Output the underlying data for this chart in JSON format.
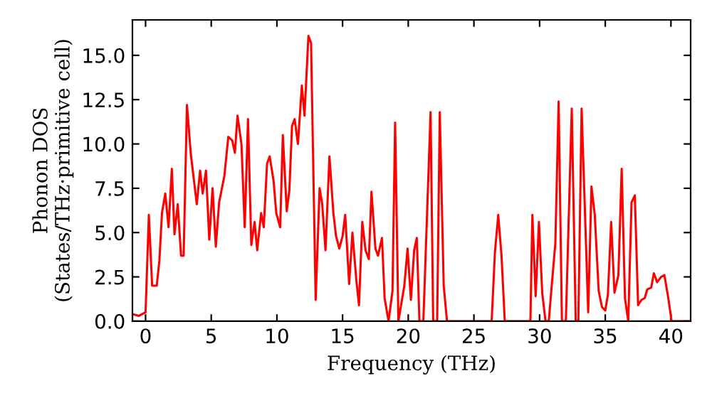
{
  "chart_data": {
    "type": "line",
    "xlabel": "Frequency (THz)",
    "ylabel": "Phonon DOS\n(States/THz·primitive cell)",
    "xlim": [
      -1,
      41.5
    ],
    "ylim": [
      0,
      17
    ],
    "xticks": [
      0,
      5,
      10,
      15,
      20,
      25,
      30,
      35,
      40
    ],
    "yticks": [
      {
        "value": 0,
        "label": "0.0"
      },
      {
        "value": 2.5,
        "label": "2.5"
      },
      {
        "value": 5,
        "label": "5.0"
      },
      {
        "value": 7.5,
        "label": "7.5"
      },
      {
        "value": 10,
        "label": "10.0"
      },
      {
        "value": 12.5,
        "label": "12.5"
      },
      {
        "value": 15,
        "label": "15.0"
      }
    ],
    "grid": false,
    "marker": "none",
    "line_style": "solid",
    "series": [
      {
        "color": "#ff0000",
        "x": [
          -1,
          -0.5,
          0,
          0.25,
          0.5,
          0.85,
          1.05,
          1.25,
          1.5,
          1.75,
          2.0,
          2.2,
          2.45,
          2.7,
          2.9,
          3.15,
          3.45,
          3.9,
          4.15,
          4.35,
          4.6,
          4.85,
          5.1,
          5.35,
          5.6,
          6.0,
          6.3,
          6.6,
          6.8,
          7.0,
          7.3,
          7.55,
          7.8,
          8.05,
          8.3,
          8.5,
          8.8,
          9.0,
          9.25,
          9.45,
          9.75,
          9.95,
          10.25,
          10.45,
          10.75,
          10.95,
          11.15,
          11.35,
          11.6,
          11.9,
          12.1,
          12.4,
          12.6,
          12.95,
          13.25,
          13.45,
          13.7,
          14.0,
          14.3,
          14.5,
          14.75,
          15.0,
          15.2,
          15.5,
          15.75,
          16.05,
          16.25,
          16.5,
          16.75,
          17.0,
          17.2,
          17.5,
          17.7,
          18.0,
          18.2,
          18.5,
          18.8,
          19.0,
          19.25,
          19.7,
          19.95,
          20.2,
          20.45,
          20.65,
          20.85,
          21.15,
          21.7,
          21.9,
          22.2,
          22.4,
          22.7,
          22.95,
          26.35,
          26.6,
          26.85,
          27.1,
          27.35,
          29.3,
          29.45,
          29.7,
          29.95,
          30.2,
          30.45,
          30.7,
          30.9,
          31.2,
          31.45,
          31.7,
          32.0,
          32.45,
          32.75,
          32.95,
          33.2,
          33.7,
          33.95,
          34.2,
          34.5,
          34.75,
          35.0,
          35.2,
          35.45,
          35.7,
          36.0,
          36.25,
          36.5,
          36.75,
          37.0,
          37.25,
          37.5,
          37.75,
          38.0,
          38.2,
          38.5,
          38.7,
          38.95,
          39.25,
          39.5,
          39.8,
          40.05,
          41.5
        ],
        "values": [
          0.4,
          0.3,
          0.5,
          6.0,
          2.0,
          2.0,
          3.4,
          6.1,
          7.2,
          5.3,
          8.6,
          4.9,
          6.6,
          3.7,
          3.7,
          12.2,
          9.4,
          6.6,
          8.5,
          7.2,
          8.5,
          4.6,
          7.5,
          4.2,
          6.7,
          8.2,
          10.4,
          10.2,
          9.5,
          11.6,
          10.0,
          5.3,
          11.4,
          4.3,
          5.6,
          4.0,
          6.1,
          5.3,
          8.9,
          9.3,
          7.9,
          6.1,
          5.3,
          10.5,
          6.2,
          7.4,
          11.0,
          11.4,
          10.0,
          13.3,
          11.6,
          16.1,
          15.7,
          1.2,
          7.5,
          6.6,
          4.0,
          9.3,
          6.1,
          4.8,
          4.1,
          4.8,
          6.0,
          2.1,
          5.0,
          2.3,
          0.9,
          5.6,
          4.0,
          3.5,
          7.3,
          4.1,
          3.7,
          4.7,
          1.3,
          0,
          1.7,
          11.2,
          0,
          2.0,
          4.1,
          1.2,
          4.0,
          4.7,
          0,
          0,
          11.8,
          0,
          0,
          11.8,
          2.0,
          0,
          0,
          3.9,
          6.0,
          3.7,
          0,
          0,
          6.0,
          1.4,
          5.6,
          1.6,
          0,
          0,
          1.8,
          4.4,
          12.4,
          0,
          0,
          12.0,
          0,
          0,
          12.0,
          0.5,
          7.6,
          6.0,
          1.7,
          0.8,
          0.6,
          1.5,
          5.6,
          1.6,
          2.6,
          8.6,
          1.3,
          0,
          6.7,
          7.1,
          0.9,
          1.2,
          1.3,
          1.8,
          1.9,
          2.7,
          2.2,
          2.5,
          2.6,
          1.3,
          0,
          0
        ]
      }
    ]
  }
}
